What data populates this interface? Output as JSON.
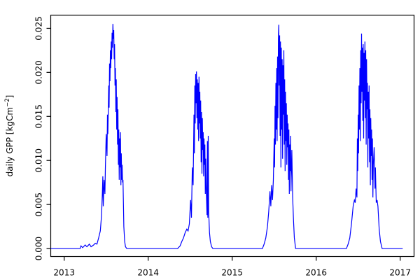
{
  "chart_data": {
    "type": "line",
    "title": "",
    "xlabel": "",
    "ylabel": "daily GPP [kgCm-2]",
    "ylabel_parts": {
      "main": "daily GPP [kgCm",
      "sup": "−2",
      "close": "]"
    },
    "x_tick_values": [
      2013,
      2014,
      2015,
      2016,
      2017
    ],
    "x_tick_labels": [
      "2013",
      "2014",
      "2015",
      "2016",
      "2017"
    ],
    "y_tick_values": [
      0.0,
      0.005,
      0.01,
      0.015,
      0.02,
      0.025
    ],
    "y_tick_labels": [
      "0.000",
      "0.005",
      "0.010",
      "0.015",
      "0.020",
      "0.025"
    ],
    "xlim": [
      2012.84,
      2017.165
    ],
    "ylim": [
      -0.00091,
      0.02649
    ],
    "grid": false,
    "legend_position": "none",
    "line_color": "#0000ff",
    "axis_color": "#000000",
    "background_color": "#ffffff",
    "series": [
      {
        "name": "daily GPP",
        "points": [
          [
            2012.84,
            0
          ],
          [
            2013.1,
            0
          ],
          [
            2013.19,
            0
          ],
          [
            2013.2,
            0.0003
          ],
          [
            2013.22,
            0.0001
          ],
          [
            2013.25,
            0.0004
          ],
          [
            2013.27,
            0.0002
          ],
          [
            2013.3,
            0.0005
          ],
          [
            2013.32,
            0.0002
          ],
          [
            2013.35,
            0.0004
          ],
          [
            2013.37,
            0.0006
          ],
          [
            2013.39,
            0.0005
          ],
          [
            2013.41,
            0.0012
          ],
          [
            2013.43,
            0.002
          ],
          [
            2013.445,
            0.0038
          ],
          [
            2013.455,
            0.0065
          ],
          [
            2013.46,
            0.0082
          ],
          [
            2013.465,
            0.0048
          ],
          [
            2013.475,
            0.0078
          ],
          [
            2013.485,
            0.0062
          ],
          [
            2013.49,
            0.009
          ],
          [
            2013.5,
            0.013
          ],
          [
            2013.51,
            0.0105
          ],
          [
            2013.515,
            0.0152
          ],
          [
            2013.52,
            0.013
          ],
          [
            2013.53,
            0.0185
          ],
          [
            2013.535,
            0.016
          ],
          [
            2013.54,
            0.021
          ],
          [
            2013.545,
            0.019
          ],
          [
            2013.55,
            0.0225
          ],
          [
            2013.555,
            0.0205
          ],
          [
            2013.56,
            0.0235
          ],
          [
            2013.565,
            0.0215
          ],
          [
            2013.57,
            0.0245
          ],
          [
            2013.575,
            0.0228
          ],
          [
            2013.58,
            0.0255
          ],
          [
            2013.585,
            0.0238
          ],
          [
            2013.59,
            0.0248
          ],
          [
            2013.595,
            0.0215
          ],
          [
            2013.6,
            0.0232
          ],
          [
            2013.605,
            0.0185
          ],
          [
            2013.61,
            0.0205
          ],
          [
            2013.615,
            0.0155
          ],
          [
            2013.62,
            0.0192
          ],
          [
            2013.625,
            0.0135
          ],
          [
            2013.63,
            0.0172
          ],
          [
            2013.635,
            0.0118
          ],
          [
            2013.64,
            0.0158
          ],
          [
            2013.645,
            0.0095
          ],
          [
            2013.65,
            0.0135
          ],
          [
            2013.655,
            0.0078
          ],
          [
            2013.66,
            0.0125
          ],
          [
            2013.665,
            0.0092
          ],
          [
            2013.67,
            0.0132
          ],
          [
            2013.675,
            0.0072
          ],
          [
            2013.68,
            0.0108
          ],
          [
            2013.685,
            0.0078
          ],
          [
            2013.69,
            0.0095
          ],
          [
            2013.695,
            0.0075
          ],
          [
            2013.7,
            0.0078
          ],
          [
            2013.705,
            0.0052
          ],
          [
            2013.71,
            0.0025
          ],
          [
            2013.72,
            0.0008
          ],
          [
            2013.73,
            0.0002
          ],
          [
            2013.745,
            0
          ],
          [
            2013.9,
            0
          ],
          [
            2014.2,
            0
          ],
          [
            2014.35,
            0
          ],
          [
            2014.38,
            0.0003
          ],
          [
            2014.4,
            0.0008
          ],
          [
            2014.42,
            0.0012
          ],
          [
            2014.44,
            0.0018
          ],
          [
            2014.46,
            0.0022
          ],
          [
            2014.475,
            0.002
          ],
          [
            2014.49,
            0.0028
          ],
          [
            2014.505,
            0.0055
          ],
          [
            2014.515,
            0.0035
          ],
          [
            2014.525,
            0.0092
          ],
          [
            2014.535,
            0.0072
          ],
          [
            2014.545,
            0.0152
          ],
          [
            2014.55,
            0.0108
          ],
          [
            2014.555,
            0.0185
          ],
          [
            2014.56,
            0.0142
          ],
          [
            2014.565,
            0.0198
          ],
          [
            2014.57,
            0.0165
          ],
          [
            2014.575,
            0.0201
          ],
          [
            2014.58,
            0.0148
          ],
          [
            2014.585,
            0.0192
          ],
          [
            2014.59,
            0.0135
          ],
          [
            2014.595,
            0.0188
          ],
          [
            2014.6,
            0.0122
          ],
          [
            2014.605,
            0.0195
          ],
          [
            2014.61,
            0.0142
          ],
          [
            2014.615,
            0.0178
          ],
          [
            2014.62,
            0.0125
          ],
          [
            2014.625,
            0.0168
          ],
          [
            2014.63,
            0.0098
          ],
          [
            2014.635,
            0.0155
          ],
          [
            2014.64,
            0.0085
          ],
          [
            2014.645,
            0.0148
          ],
          [
            2014.65,
            0.0112
          ],
          [
            2014.655,
            0.0132
          ],
          [
            2014.66,
            0.0082
          ],
          [
            2014.665,
            0.0125
          ],
          [
            2014.67,
            0.0095
          ],
          [
            2014.675,
            0.0118
          ],
          [
            2014.68,
            0.0062
          ],
          [
            2014.685,
            0.0102
          ],
          [
            2014.69,
            0.0072
          ],
          [
            2014.7,
            0.0038
          ],
          [
            2014.705,
            0.0122
          ],
          [
            2014.71,
            0.0035
          ],
          [
            2014.715,
            0.0128
          ],
          [
            2014.72,
            0.0042
          ],
          [
            2014.73,
            0.0018
          ],
          [
            2014.74,
            0.0008
          ],
          [
            2014.755,
            0.0002
          ],
          [
            2014.77,
            0
          ],
          [
            2014.9,
            0
          ],
          [
            2015.2,
            0
          ],
          [
            2015.36,
            0
          ],
          [
            2015.38,
            0.0005
          ],
          [
            2015.4,
            0.0012
          ],
          [
            2015.42,
            0.0025
          ],
          [
            2015.435,
            0.0042
          ],
          [
            2015.45,
            0.0065
          ],
          [
            2015.46,
            0.0048
          ],
          [
            2015.47,
            0.0072
          ],
          [
            2015.48,
            0.0055
          ],
          [
            2015.49,
            0.0078
          ],
          [
            2015.5,
            0.0125
          ],
          [
            2015.505,
            0.0092
          ],
          [
            2015.51,
            0.0162
          ],
          [
            2015.515,
            0.0118
          ],
          [
            2015.52,
            0.0188
          ],
          [
            2015.525,
            0.0135
          ],
          [
            2015.53,
            0.0205
          ],
          [
            2015.535,
            0.0122
          ],
          [
            2015.54,
            0.0218
          ],
          [
            2015.545,
            0.0148
          ],
          [
            2015.55,
            0.0238
          ],
          [
            2015.555,
            0.0254
          ],
          [
            2015.56,
            0.0185
          ],
          [
            2015.565,
            0.0242
          ],
          [
            2015.57,
            0.0128
          ],
          [
            2015.575,
            0.0235
          ],
          [
            2015.58,
            0.0092
          ],
          [
            2015.585,
            0.0228
          ],
          [
            2015.59,
            0.0135
          ],
          [
            2015.595,
            0.0215
          ],
          [
            2015.6,
            0.0102
          ],
          [
            2015.605,
            0.0208
          ],
          [
            2015.61,
            0.0152
          ],
          [
            2015.615,
            0.0225
          ],
          [
            2015.62,
            0.0118
          ],
          [
            2015.625,
            0.0192
          ],
          [
            2015.63,
            0.0088
          ],
          [
            2015.635,
            0.0178
          ],
          [
            2015.64,
            0.0122
          ],
          [
            2015.645,
            0.0165
          ],
          [
            2015.65,
            0.0095
          ],
          [
            2015.655,
            0.0152
          ],
          [
            2015.66,
            0.0115
          ],
          [
            2015.665,
            0.0142
          ],
          [
            2015.67,
            0.0078
          ],
          [
            2015.675,
            0.0135
          ],
          [
            2015.68,
            0.0062
          ],
          [
            2015.685,
            0.0118
          ],
          [
            2015.69,
            0.0088
          ],
          [
            2015.695,
            0.0128
          ],
          [
            2015.7,
            0.0065
          ],
          [
            2015.71,
            0.0112
          ],
          [
            2015.72,
            0.0058
          ],
          [
            2015.73,
            0.0032
          ],
          [
            2015.74,
            0.0012
          ],
          [
            2015.755,
            0
          ],
          [
            2015.9,
            0
          ],
          [
            2016.2,
            0
          ],
          [
            2016.36,
            0
          ],
          [
            2016.38,
            0.0005
          ],
          [
            2016.4,
            0.0012
          ],
          [
            2016.42,
            0.0028
          ],
          [
            2016.44,
            0.0048
          ],
          [
            2016.455,
            0.0055
          ],
          [
            2016.465,
            0.0052
          ],
          [
            2016.475,
            0.0068
          ],
          [
            2016.485,
            0.0058
          ],
          [
            2016.49,
            0.0125
          ],
          [
            2016.495,
            0.0088
          ],
          [
            2016.5,
            0.0152
          ],
          [
            2016.505,
            0.0108
          ],
          [
            2016.51,
            0.0185
          ],
          [
            2016.515,
            0.0135
          ],
          [
            2016.52,
            0.0205
          ],
          [
            2016.525,
            0.0122
          ],
          [
            2016.53,
            0.0225
          ],
          [
            2016.535,
            0.0165
          ],
          [
            2016.54,
            0.0244
          ],
          [
            2016.545,
            0.0178
          ],
          [
            2016.55,
            0.0228
          ],
          [
            2016.555,
            0.0145
          ],
          [
            2016.56,
            0.0232
          ],
          [
            2016.565,
            0.0125
          ],
          [
            2016.57,
            0.0222
          ],
          [
            2016.575,
            0.0168
          ],
          [
            2016.58,
            0.0235
          ],
          [
            2016.585,
            0.0148
          ],
          [
            2016.59,
            0.0225
          ],
          [
            2016.595,
            0.0118
          ],
          [
            2016.6,
            0.0215
          ],
          [
            2016.605,
            0.0158
          ],
          [
            2016.61,
            0.0188
          ],
          [
            2016.615,
            0.0092
          ],
          [
            2016.62,
            0.0178
          ],
          [
            2016.625,
            0.0125
          ],
          [
            2016.63,
            0.0185
          ],
          [
            2016.635,
            0.0098
          ],
          [
            2016.64,
            0.0158
          ],
          [
            2016.645,
            0.0072
          ],
          [
            2016.65,
            0.0148
          ],
          [
            2016.655,
            0.0105
          ],
          [
            2016.66,
            0.0135
          ],
          [
            2016.665,
            0.0078
          ],
          [
            2016.67,
            0.0125
          ],
          [
            2016.675,
            0.0058
          ],
          [
            2016.68,
            0.0095
          ],
          [
            2016.69,
            0.0115
          ],
          [
            2016.7,
            0.0068
          ],
          [
            2016.705,
            0.0092
          ],
          [
            2016.715,
            0.0052
          ],
          [
            2016.725,
            0.0055
          ],
          [
            2016.735,
            0.0048
          ],
          [
            2016.75,
            0.0022
          ],
          [
            2016.765,
            0.0008
          ],
          [
            2016.785,
            0
          ],
          [
            2016.9,
            0
          ],
          [
            2017.03,
            0
          ]
        ]
      }
    ]
  }
}
